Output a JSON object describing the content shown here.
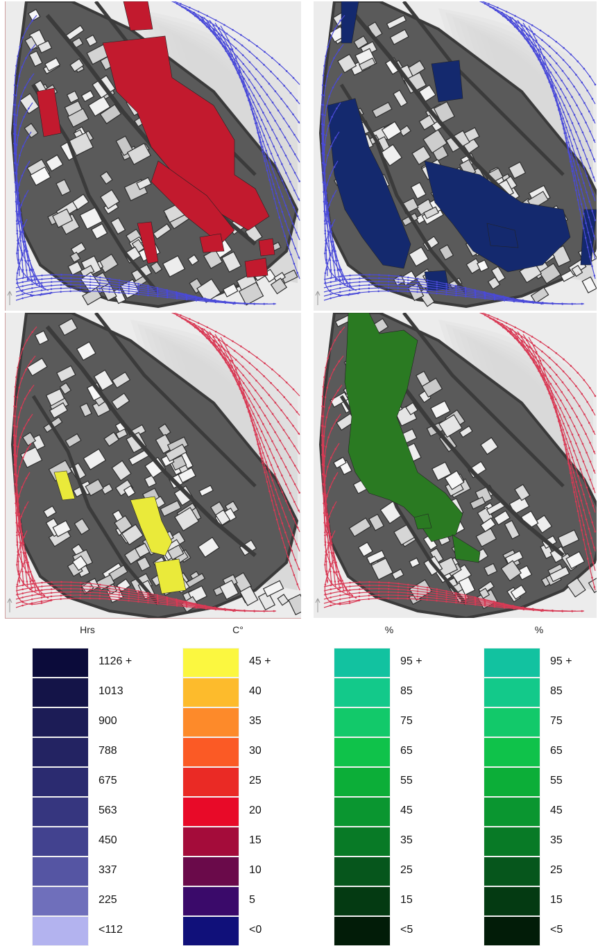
{
  "panels": [
    {
      "name": "hours-panel",
      "highlight": "#c21a2e",
      "stream": "#4a4ad8"
    },
    {
      "name": "hours-panel-blue",
      "highlight": "#14296e",
      "stream": "#4a4ad8"
    },
    {
      "name": "temperature-panel",
      "highlight": "#eaea3a",
      "stream": "#d83a55"
    },
    {
      "name": "percent-panel",
      "highlight": "#2a7a22",
      "stream": "#d83a55"
    }
  ],
  "legends": [
    {
      "title": "Hrs",
      "items": [
        {
          "label": "1126 +",
          "color": "#0b0b3a"
        },
        {
          "label": "1013",
          "color": "#141448"
        },
        {
          "label": "900",
          "color": "#1c1c56"
        },
        {
          "label": "788",
          "color": "#232362"
        },
        {
          "label": "675",
          "color": "#2b2b70"
        },
        {
          "label": "563",
          "color": "#36367f"
        },
        {
          "label": "450",
          "color": "#42428f"
        },
        {
          "label": "337",
          "color": "#5555a3"
        },
        {
          "label": "225",
          "color": "#6f6fbb"
        },
        {
          "label": "<112",
          "color": "#b3b3ef"
        }
      ]
    },
    {
      "title": "C°",
      "items": [
        {
          "label": "45 +",
          "color": "#fbf740"
        },
        {
          "label": "40",
          "color": "#fdbb2c"
        },
        {
          "label": "35",
          "color": "#fd8a2a"
        },
        {
          "label": "30",
          "color": "#fb5a25"
        },
        {
          "label": "25",
          "color": "#ea2a25"
        },
        {
          "label": "20",
          "color": "#e80a28"
        },
        {
          "label": "15",
          "color": "#a40c3a"
        },
        {
          "label": "10",
          "color": "#6a0a4a"
        },
        {
          "label": "5",
          "color": "#3a0a6a"
        },
        {
          "label": "<0",
          "color": "#10107a"
        }
      ]
    },
    {
      "title": "%",
      "items": [
        {
          "label": "95 +",
          "color": "#12c2a0"
        },
        {
          "label": "85",
          "color": "#13c98a"
        },
        {
          "label": "75",
          "color": "#12c96a"
        },
        {
          "label": "65",
          "color": "#0fc24a"
        },
        {
          "label": "55",
          "color": "#0cae38"
        },
        {
          "label": "45",
          "color": "#0a9630"
        },
        {
          "label": "35",
          "color": "#087a26"
        },
        {
          "label": "25",
          "color": "#06561c"
        },
        {
          "label": "15",
          "color": "#043a12"
        },
        {
          "label": "<5",
          "color": "#021c08"
        }
      ]
    },
    {
      "title": "%",
      "items": [
        {
          "label": "95 +",
          "color": "#12c2a0"
        },
        {
          "label": "85",
          "color": "#13c98a"
        },
        {
          "label": "75",
          "color": "#12c96a"
        },
        {
          "label": "65",
          "color": "#0fc24a"
        },
        {
          "label": "55",
          "color": "#0cae38"
        },
        {
          "label": "45",
          "color": "#0a9630"
        },
        {
          "label": "35",
          "color": "#087a26"
        },
        {
          "label": "25",
          "color": "#06561c"
        },
        {
          "label": "15",
          "color": "#043a12"
        },
        {
          "label": "<5",
          "color": "#021c08"
        }
      ]
    }
  ]
}
